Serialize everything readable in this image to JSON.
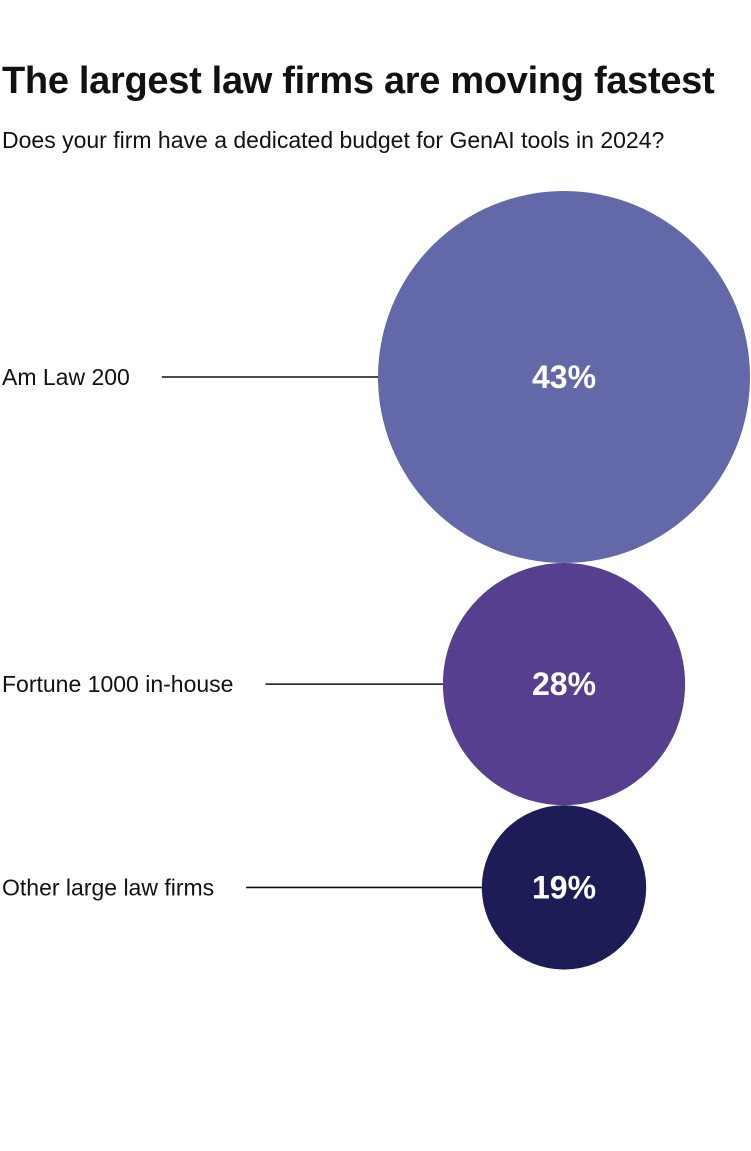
{
  "header": {
    "title": "The largest law firms are moving fastest",
    "subtitle": "Does your firm have a dedicated budget for GenAI tools in 2024?"
  },
  "chart_data": {
    "type": "bubble",
    "title": "The largest law firms are moving fastest",
    "subtitle": "Does your firm have a dedicated budget for GenAI tools in 2024?",
    "unit": "%",
    "grid": false,
    "legend": "none",
    "categories": [
      "Am Law 200",
      "Fortune 1000 in-house",
      "Other large law firms"
    ],
    "values": [
      43,
      28,
      19
    ],
    "value_labels": [
      "43%",
      "28%",
      "19%"
    ],
    "colors": [
      "#6268a8",
      "#563f8e",
      "#1e1c56"
    ]
  }
}
